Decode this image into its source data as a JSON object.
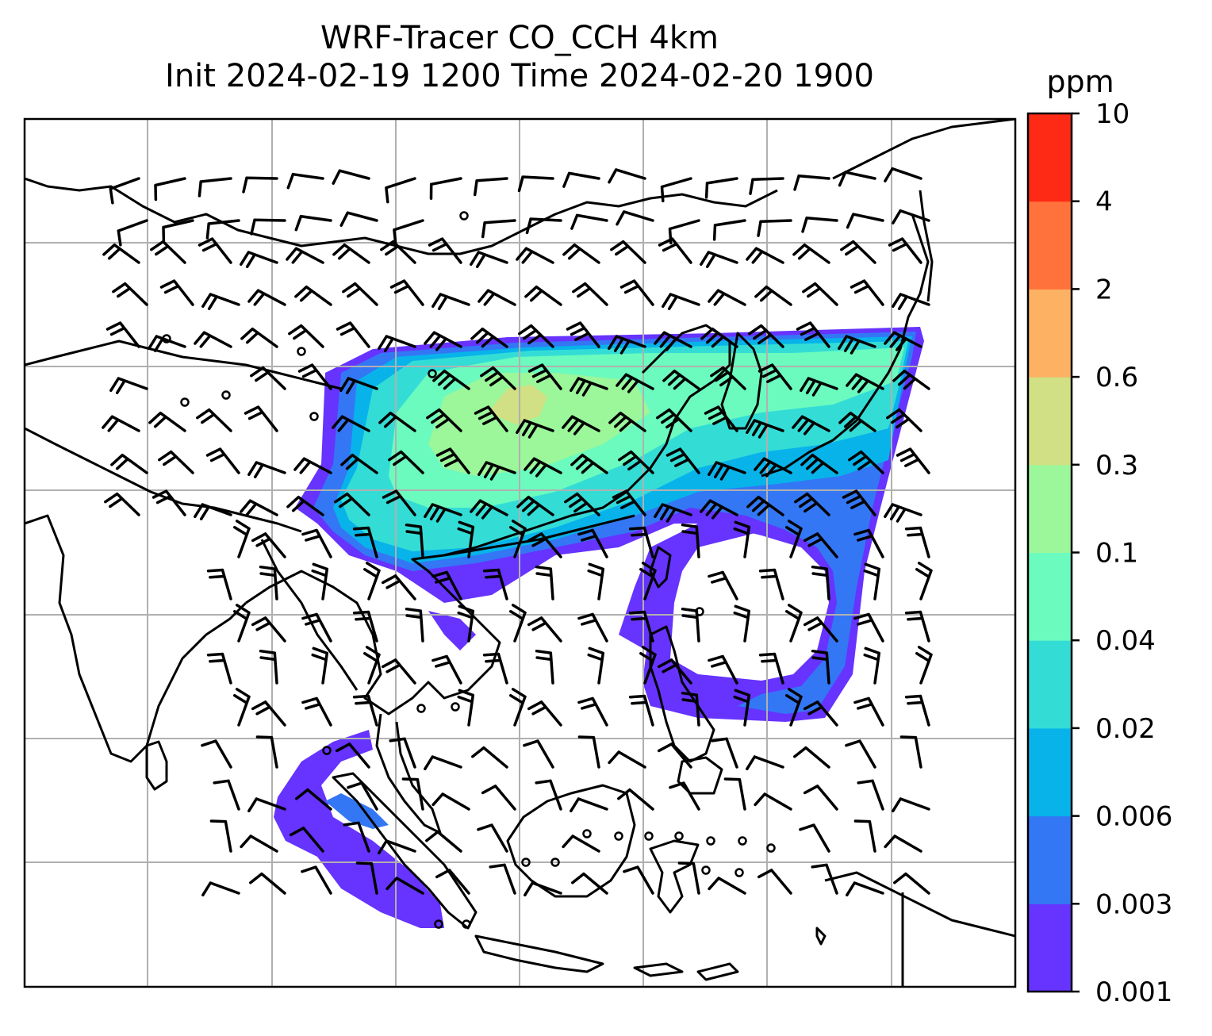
{
  "title": {
    "line1": "WRF-Tracer CO_CCH 4km",
    "line2": "Init 2024-02-19 1200 Time 2024-02-20 1900"
  },
  "colorbar": {
    "unit": "ppm",
    "levels": [
      "0.001",
      "0.003",
      "0.006",
      "0.02",
      "0.04",
      "0.1",
      "0.3",
      "0.6",
      "2",
      "4",
      "10"
    ],
    "colors": [
      "#6633ff",
      "#3377f5",
      "#08b3ea",
      "#33ddd6",
      "#6bfbbe",
      "#9cf69a",
      "#d1e084",
      "#fdb163",
      "#ff723b",
      "#ff2a15"
    ]
  },
  "map": {
    "gridlines": true,
    "coastline_color": "#000000",
    "grid_color": "#b0b0b0",
    "wind_barb_color": "#000000"
  }
}
